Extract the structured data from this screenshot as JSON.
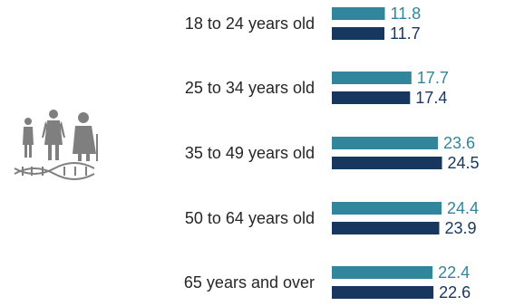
{
  "chart_data": {
    "type": "bar",
    "orientation": "horizontal",
    "categories": [
      "18 to 24 years old",
      "25 to 34 years old",
      "35 to 49 years old",
      "50 to 64 years old",
      "65 years and over"
    ],
    "series": [
      {
        "values": [
          11.8,
          17.7,
          23.6,
          24.4,
          22.4
        ],
        "color": "#31869b"
      },
      {
        "values": [
          11.7,
          17.4,
          24.5,
          23.9,
          22.6
        ],
        "color": "#17375e"
      }
    ],
    "xlim": [
      0,
      30
    ],
    "grid": false,
    "legend": "none"
  },
  "icon": {
    "name": "family-dna-icon",
    "color": "#7f7f7f"
  }
}
